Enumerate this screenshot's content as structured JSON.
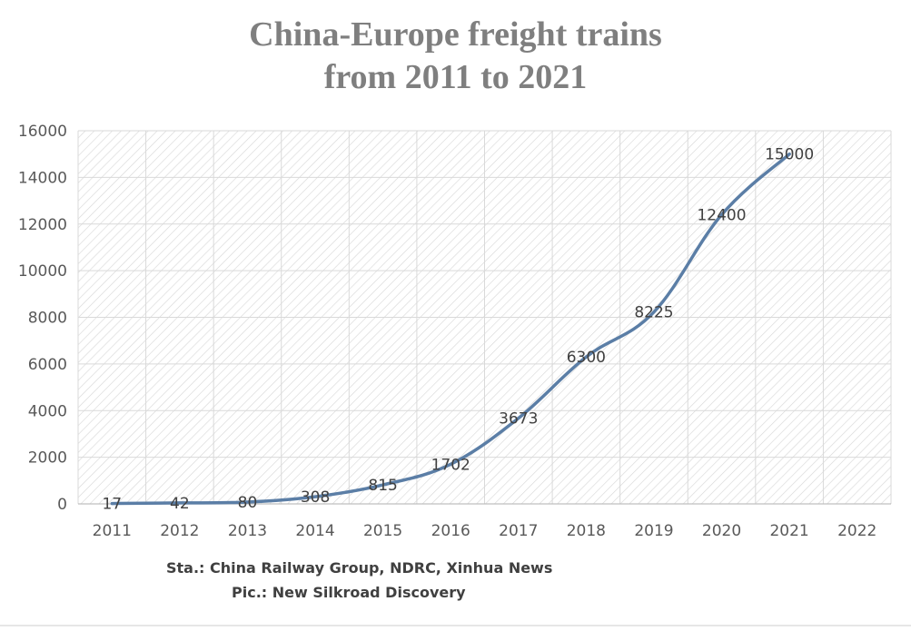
{
  "chart_data": {
    "type": "line",
    "title_line1": "China-Europe freight trains",
    "title_line2": "from 2011 to 2021",
    "categories": [
      "2011",
      "2012",
      "2013",
      "2014",
      "2015",
      "2016",
      "2017",
      "2018",
      "2019",
      "2020",
      "2021",
      "2022"
    ],
    "series": [
      {
        "x": [
          "2011",
          "2012",
          "2013",
          "2014",
          "2015",
          "2016",
          "2017",
          "2018",
          "2019",
          "2020",
          "2021"
        ],
        "values": [
          17,
          42,
          80,
          308,
          815,
          1702,
          3673,
          6300,
          8225,
          12400,
          15000
        ],
        "labels": [
          "17",
          "42",
          "80",
          "308",
          "815",
          "1702",
          "3673",
          "6300",
          "8225",
          "12400",
          "15000"
        ],
        "color": "#5b7ea6"
      }
    ],
    "ylim": [
      0,
      16000
    ],
    "yticks": [
      0,
      2000,
      4000,
      6000,
      8000,
      10000,
      12000,
      14000,
      16000
    ],
    "ytick_labels": [
      "0",
      "2000",
      "4000",
      "6000",
      "8000",
      "10000",
      "12000",
      "14000",
      "16000"
    ],
    "grid": true,
    "plot_background": "hatched"
  },
  "footer": {
    "source_text": "Sta.: China Railway Group, NDRC, Xinhua News",
    "pic_text": "Pic.: New Silkroad Discovery"
  }
}
